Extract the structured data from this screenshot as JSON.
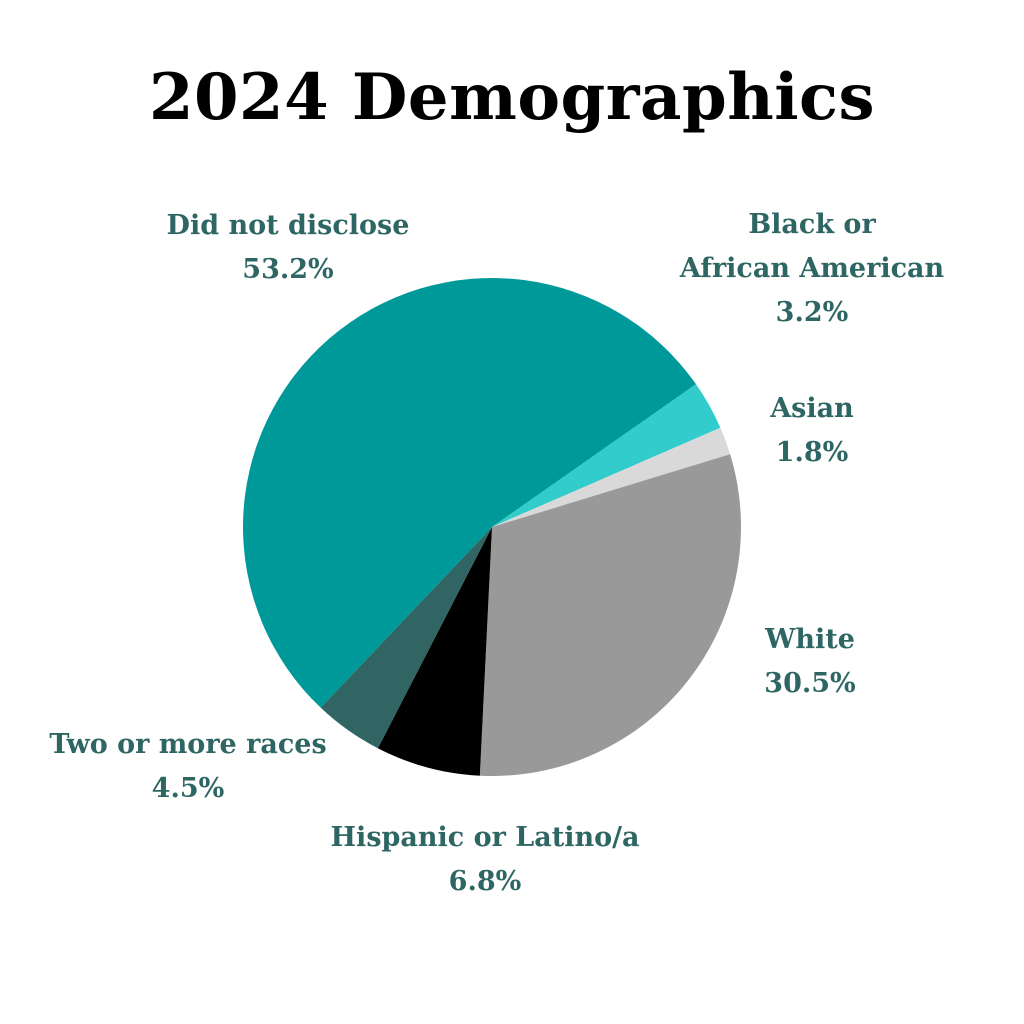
{
  "title": "2024 Demographics",
  "colors": {
    "label_text": "#2e6664"
  },
  "chart_data": {
    "type": "pie",
    "title": "2024 Demographics",
    "start_angle_deg": 55,
    "direction": "clockwise",
    "slices": [
      {
        "label": [
          "Black or",
          "African American"
        ],
        "value": 3.2,
        "value_label": "3.2%",
        "color": "#33cccc"
      },
      {
        "label": [
          "Asian"
        ],
        "value": 1.8,
        "value_label": "1.8%",
        "color": "#d9d9d9"
      },
      {
        "label": [
          "White"
        ],
        "value": 30.5,
        "value_label": "30.5%",
        "color": "#999999"
      },
      {
        "label": [
          "Hispanic or Latino/a"
        ],
        "value": 6.8,
        "value_label": "6.8%",
        "color": "#000000"
      },
      {
        "label": [
          "Two or more races"
        ],
        "value": 4.5,
        "value_label": "4.5%",
        "color": "#306563"
      },
      {
        "label": [
          "Did not disclose"
        ],
        "value": 53.2,
        "value_label": "53.2%",
        "color": "#009999"
      }
    ]
  }
}
